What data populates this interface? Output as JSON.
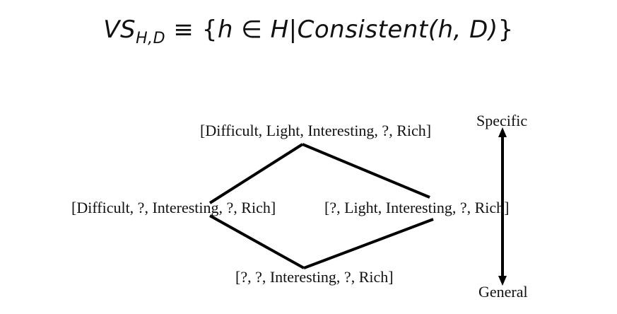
{
  "formula": {
    "lhs_main": "VS",
    "lhs_sub": "H,D",
    "equiv": "≡",
    "rhs_open": "{",
    "rhs_body": "h ∈ H|Consistent(h, D)",
    "rhs_close": "}"
  },
  "nodes": {
    "top": "[Difficult, Light, Interesting, ?, Rich]",
    "left": "[Difficult, ?, Interesting, ?, Rich]",
    "right": "[?, Light, Interesting, ?, Rich]",
    "bottom": "[?, ?, Interesting, ?, Rich]"
  },
  "axis": {
    "top_label": "Specific",
    "bottom_label": "General"
  }
}
